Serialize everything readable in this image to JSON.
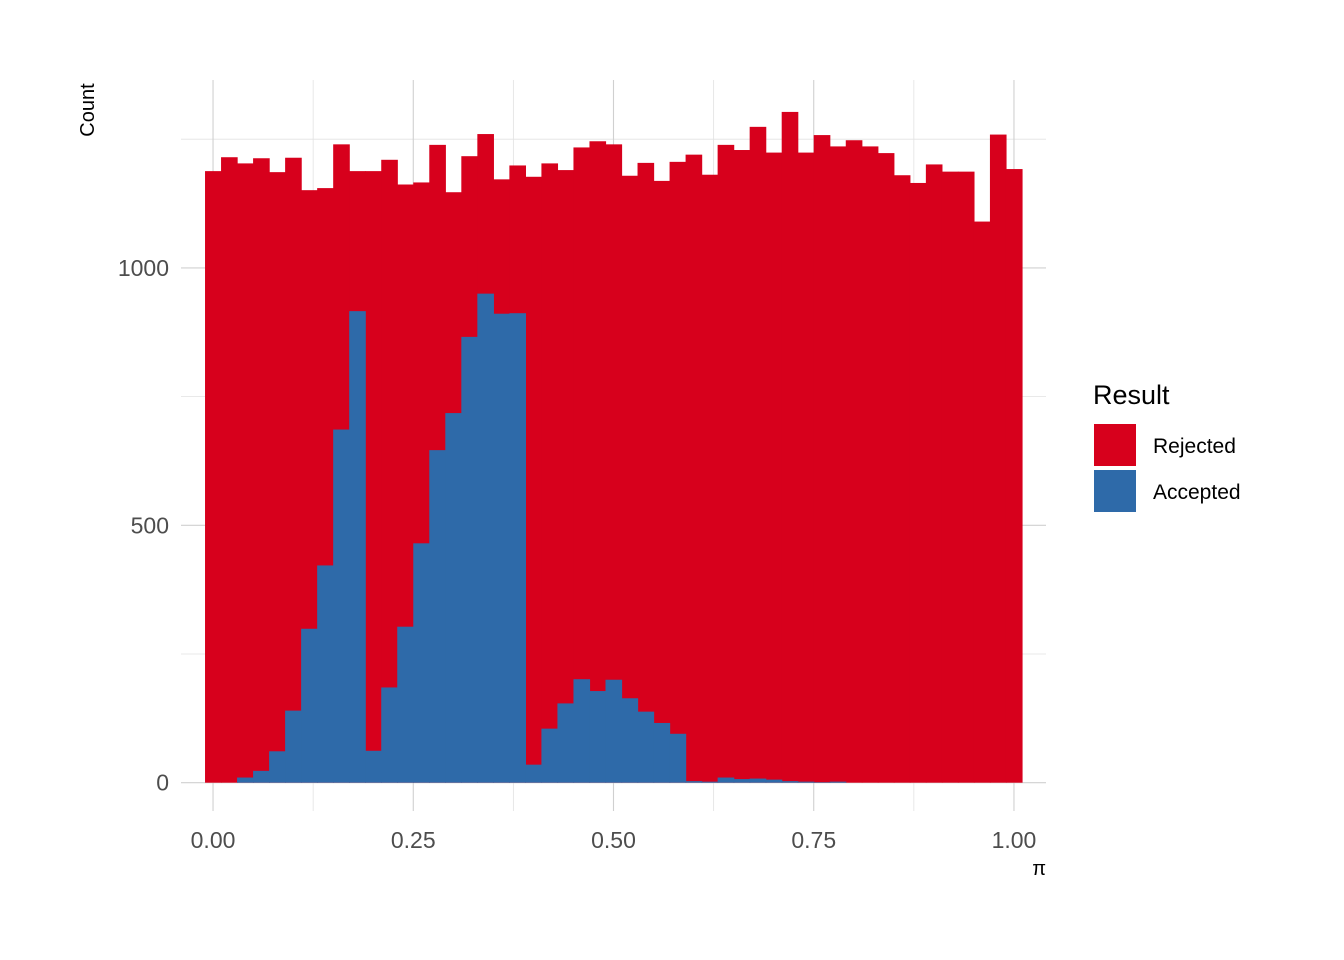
{
  "chart_data": {
    "type": "histogram",
    "stacking": "overlay",
    "xlabel": "π",
    "ylabel": "Count",
    "xlim": [
      -0.04,
      1.04
    ],
    "ylim": [
      -55,
      1365
    ],
    "x_ticks": [
      "0.00",
      "0.25",
      "0.50",
      "0.75",
      "1.00"
    ],
    "x_tick_values": [
      0,
      0.25,
      0.5,
      0.75,
      1.0
    ],
    "y_ticks": [
      "0",
      "500",
      "1000"
    ],
    "y_tick_values": [
      0,
      500,
      1000
    ],
    "y_minor_ticks": [
      250,
      750,
      1250
    ],
    "x_minor_ticks": [
      0.125,
      0.375,
      0.625,
      0.875
    ],
    "bin_width": 0.02,
    "bin_start": 0.0,
    "grid": true,
    "legend_position": "right",
    "legend": {
      "title": "Result",
      "entries": [
        {
          "label": "Rejected",
          "color": "#D7001C"
        },
        {
          "label": "Accepted",
          "color": "#2E6AA9"
        }
      ]
    },
    "series": [
      {
        "name": "Rejected",
        "color": "#D7001C",
        "values": [
          1188,
          1215,
          1203,
          1213,
          1186,
          1214,
          1151,
          1155,
          1240,
          1188,
          1188,
          1210,
          1162,
          1166,
          1239,
          1147,
          1217,
          1260,
          1172,
          1199,
          1177,
          1203,
          1190,
          1234,
          1246,
          1240,
          1179,
          1204,
          1169,
          1206,
          1220,
          1181,
          1239,
          1229,
          1274,
          1224,
          1303,
          1224,
          1258,
          1236,
          1248,
          1236,
          1223,
          1180,
          1165,
          1201,
          1187,
          1187,
          1090,
          1259,
          1192
        ]
      },
      {
        "name": "Accepted",
        "color": "#2E6AA9",
        "values": [
          0,
          0,
          10,
          23,
          61,
          140,
          299,
          422,
          686,
          916,
          62,
          185,
          303,
          465,
          646,
          718,
          866,
          950,
          911,
          912,
          35,
          105,
          154,
          201,
          178,
          200,
          164,
          138,
          116,
          95,
          3,
          2,
          10,
          7,
          8,
          6,
          3,
          2,
          1,
          2,
          0,
          0,
          0,
          0,
          0,
          0,
          0,
          0,
          0,
          0,
          0
        ]
      }
    ]
  }
}
